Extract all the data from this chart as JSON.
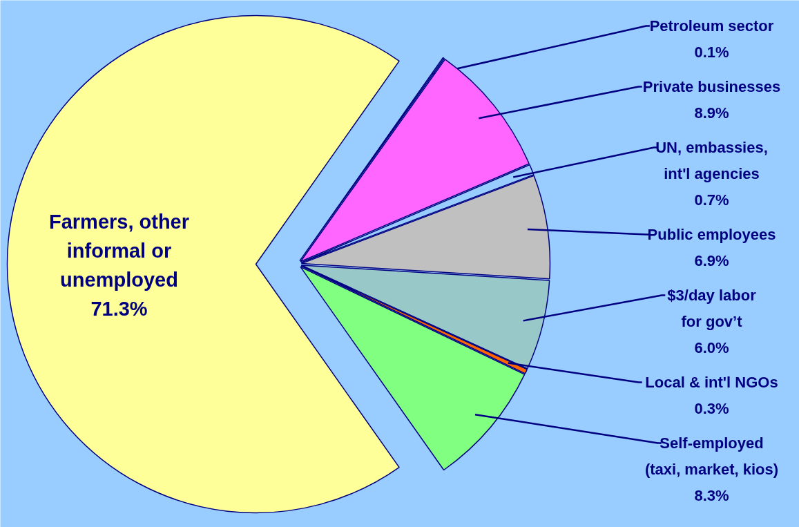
{
  "chart_data": {
    "type": "pie",
    "categories": [
      "Petroleum sector",
      "Private businesses",
      "UN, embassies, int'l agencies",
      "Public employees",
      "$3/day labor for gov’t",
      "Local & int'l NGOs",
      "Self-employed (taxi, market, kios)",
      "Farmers, other informal or unemployed"
    ],
    "values": [
      0.1,
      8.9,
      0.7,
      6.9,
      6.0,
      0.3,
      8.3,
      71.3
    ],
    "colors": [
      "#3366cc",
      "#ff66ff",
      "#99ccff",
      "#c0c0c0",
      "#99c8c8",
      "#ff6600",
      "#80ff80",
      "#ffff99"
    ],
    "value_labels": [
      "0.1%",
      "8.9%",
      "0.7%",
      "6.9%",
      "6.0%",
      "0.3%",
      "8.3%",
      "71.3%"
    ]
  }
}
